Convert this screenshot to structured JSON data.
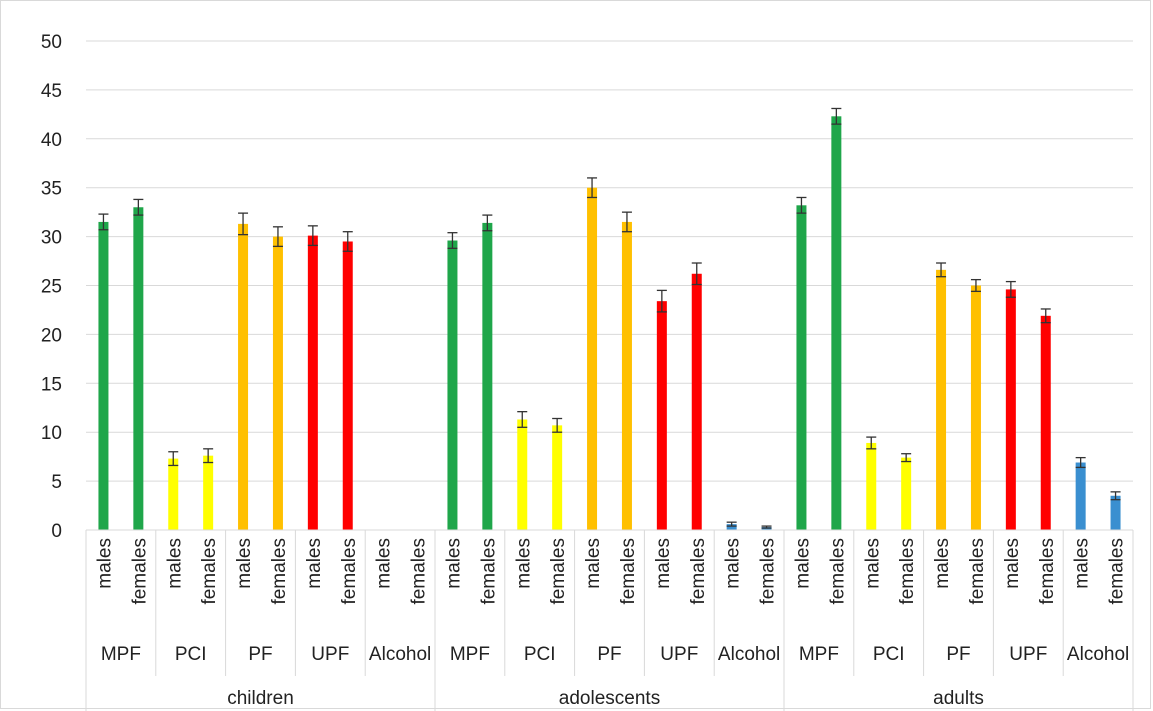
{
  "chart_data": {
    "type": "bar",
    "title": "",
    "xlabel": "",
    "ylabel": "",
    "ylim": [
      0,
      50
    ],
    "yticks": [
      0,
      5,
      10,
      15,
      20,
      25,
      30,
      35,
      40,
      45,
      50
    ],
    "grid": true,
    "legend": "none",
    "colors": {
      "MPF": "#1fa64a",
      "PCI": "#ffff00",
      "PF": "#ffc000",
      "UPF": "#ff0000",
      "Alcohol": "#3a8fd0",
      "error_bar": "#333333",
      "gridline": "#d9d9d9"
    },
    "groups": [
      {
        "name": "children",
        "categories": [
          {
            "name": "MPF",
            "bars": [
              {
                "sex": "males",
                "value": 31.5,
                "error": 0.8
              },
              {
                "sex": "females",
                "value": 33.0,
                "error": 0.8
              }
            ]
          },
          {
            "name": "PCI",
            "bars": [
              {
                "sex": "males",
                "value": 7.3,
                "error": 0.7
              },
              {
                "sex": "females",
                "value": 7.6,
                "error": 0.7
              }
            ]
          },
          {
            "name": "PF",
            "bars": [
              {
                "sex": "males",
                "value": 31.3,
                "error": 1.1
              },
              {
                "sex": "females",
                "value": 30.0,
                "error": 1.0
              }
            ]
          },
          {
            "name": "UPF",
            "bars": [
              {
                "sex": "males",
                "value": 30.1,
                "error": 1.0
              },
              {
                "sex": "females",
                "value": 29.5,
                "error": 1.0
              }
            ]
          },
          {
            "name": "Alcohol",
            "bars": [
              {
                "sex": "males",
                "value": 0,
                "error": 0
              },
              {
                "sex": "females",
                "value": 0,
                "error": 0
              }
            ]
          }
        ]
      },
      {
        "name": "adolescents",
        "categories": [
          {
            "name": "MPF",
            "bars": [
              {
                "sex": "males",
                "value": 29.6,
                "error": 0.8
              },
              {
                "sex": "females",
                "value": 31.4,
                "error": 0.8
              }
            ]
          },
          {
            "name": "PCI",
            "bars": [
              {
                "sex": "males",
                "value": 11.3,
                "error": 0.8
              },
              {
                "sex": "females",
                "value": 10.7,
                "error": 0.7
              }
            ]
          },
          {
            "name": "PF",
            "bars": [
              {
                "sex": "males",
                "value": 35.0,
                "error": 1.0
              },
              {
                "sex": "females",
                "value": 31.5,
                "error": 1.0
              }
            ]
          },
          {
            "name": "UPF",
            "bars": [
              {
                "sex": "males",
                "value": 23.4,
                "error": 1.1
              },
              {
                "sex": "females",
                "value": 26.2,
                "error": 1.1
              }
            ]
          },
          {
            "name": "Alcohol",
            "bars": [
              {
                "sex": "males",
                "value": 0.6,
                "error": 0.2
              },
              {
                "sex": "females",
                "value": 0.3,
                "error": 0.1
              }
            ]
          }
        ]
      },
      {
        "name": "adults",
        "categories": [
          {
            "name": "MPF",
            "bars": [
              {
                "sex": "males",
                "value": 33.2,
                "error": 0.8
              },
              {
                "sex": "females",
                "value": 42.3,
                "error": 0.8
              }
            ]
          },
          {
            "name": "PCI",
            "bars": [
              {
                "sex": "males",
                "value": 8.9,
                "error": 0.6
              },
              {
                "sex": "females",
                "value": 7.4,
                "error": 0.4
              }
            ]
          },
          {
            "name": "PF",
            "bars": [
              {
                "sex": "males",
                "value": 26.6,
                "error": 0.7
              },
              {
                "sex": "females",
                "value": 25.0,
                "error": 0.6
              }
            ]
          },
          {
            "name": "UPF",
            "bars": [
              {
                "sex": "males",
                "value": 24.6,
                "error": 0.8
              },
              {
                "sex": "females",
                "value": 21.9,
                "error": 0.7
              }
            ]
          },
          {
            "name": "Alcohol",
            "bars": [
              {
                "sex": "males",
                "value": 6.9,
                "error": 0.5
              },
              {
                "sex": "females",
                "value": 3.5,
                "error": 0.4
              }
            ]
          }
        ]
      }
    ]
  }
}
